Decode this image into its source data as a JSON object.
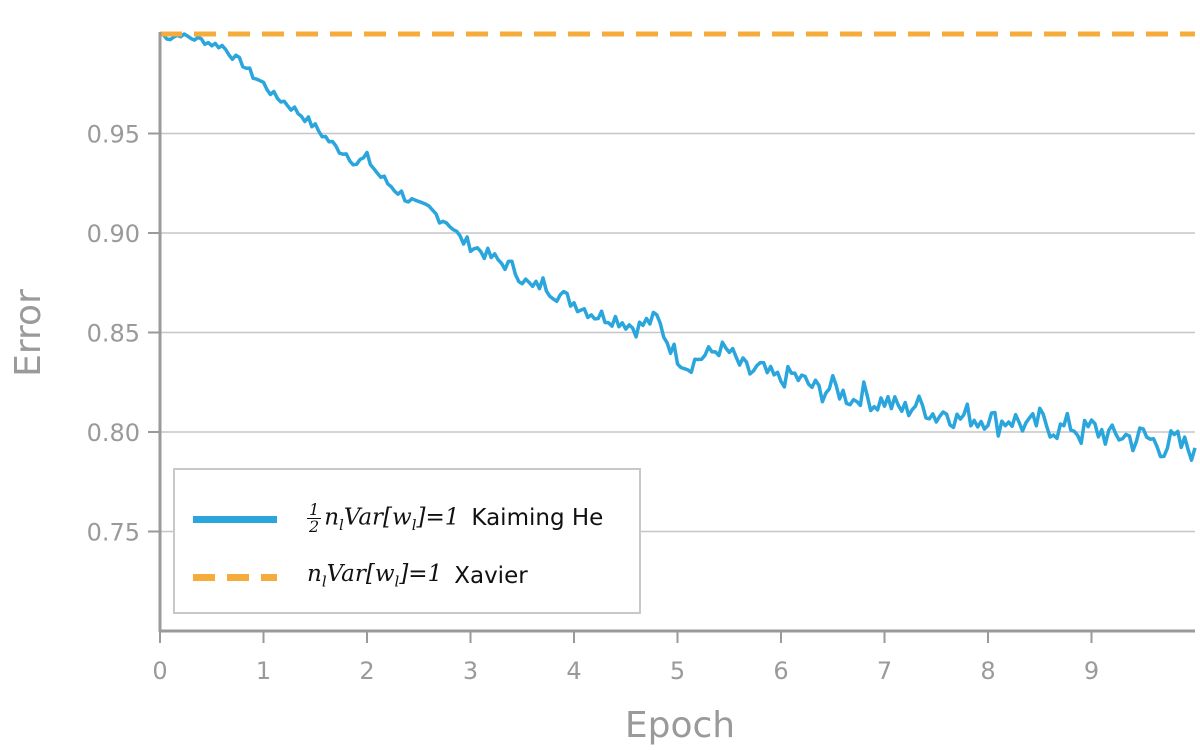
{
  "chart_data": {
    "type": "line",
    "title": "",
    "xlabel": "Epoch",
    "ylabel": "Error",
    "xlim": [
      0,
      10
    ],
    "ylim": [
      0.7,
      1.0
    ],
    "x_ticks": [
      "0",
      "1",
      "2",
      "3",
      "4",
      "5",
      "6",
      "7",
      "8",
      "9"
    ],
    "y_ticks": [
      "0.75",
      "0.80",
      "0.85",
      "0.90",
      "0.95"
    ],
    "grid": "horizontal",
    "legend_placement": "lower-left",
    "series": [
      {
        "name": "Kaiming He",
        "legend_formula": {
          "frac_num": "1",
          "frac_den": "2",
          "pre": "n",
          "sub1": "l",
          "mid": "Var[w",
          "sub2": "l",
          "post": "]=1"
        },
        "color": "#2aa6dd",
        "style": "solid",
        "points": [
          [
            0.0,
            1.0
          ],
          [
            0.1,
            0.998
          ],
          [
            0.2,
            1.0
          ],
          [
            0.3,
            0.998
          ],
          [
            0.4,
            0.997
          ],
          [
            0.5,
            0.995
          ],
          [
            0.6,
            0.994
          ],
          [
            0.7,
            0.989
          ],
          [
            0.8,
            0.985
          ],
          [
            0.9,
            0.979
          ],
          [
            1.0,
            0.975
          ],
          [
            1.1,
            0.969
          ],
          [
            1.2,
            0.966
          ],
          [
            1.3,
            0.962
          ],
          [
            1.4,
            0.958
          ],
          [
            1.5,
            0.953
          ],
          [
            1.6,
            0.948
          ],
          [
            1.7,
            0.943
          ],
          [
            1.8,
            0.94
          ],
          [
            1.9,
            0.935
          ],
          [
            2.0,
            0.938
          ],
          [
            2.1,
            0.93
          ],
          [
            2.2,
            0.925
          ],
          [
            2.3,
            0.921
          ],
          [
            2.4,
            0.917
          ],
          [
            2.5,
            0.913
          ],
          [
            2.6,
            0.912
          ],
          [
            2.7,
            0.908
          ],
          [
            2.8,
            0.905
          ],
          [
            2.9,
            0.897
          ],
          [
            3.0,
            0.894
          ],
          [
            3.1,
            0.891
          ],
          [
            3.2,
            0.888
          ],
          [
            3.3,
            0.885
          ],
          [
            3.4,
            0.883
          ],
          [
            3.5,
            0.877
          ],
          [
            3.6,
            0.872
          ],
          [
            3.7,
            0.875
          ],
          [
            3.8,
            0.87
          ],
          [
            3.9,
            0.868
          ],
          [
            4.0,
            0.865
          ],
          [
            4.1,
            0.862
          ],
          [
            4.2,
            0.859
          ],
          [
            4.3,
            0.858
          ],
          [
            4.4,
            0.857
          ],
          [
            4.5,
            0.855
          ],
          [
            4.6,
            0.852
          ],
          [
            4.7,
            0.855
          ],
          [
            4.8,
            0.857
          ],
          [
            4.9,
            0.846
          ],
          [
            5.0,
            0.838
          ],
          [
            5.1,
            0.833
          ],
          [
            5.2,
            0.837
          ],
          [
            5.3,
            0.839
          ],
          [
            5.4,
            0.842
          ],
          [
            5.5,
            0.84
          ],
          [
            5.6,
            0.834
          ],
          [
            5.7,
            0.83
          ],
          [
            5.8,
            0.832
          ],
          [
            5.9,
            0.828
          ],
          [
            6.0,
            0.826
          ],
          [
            6.1,
            0.829
          ],
          [
            6.2,
            0.826
          ],
          [
            6.3,
            0.823
          ],
          [
            6.4,
            0.82
          ],
          [
            6.5,
            0.823
          ],
          [
            6.6,
            0.819
          ],
          [
            6.7,
            0.816
          ],
          [
            6.8,
            0.82
          ],
          [
            6.9,
            0.814
          ],
          [
            7.0,
            0.816
          ],
          [
            7.1,
            0.813
          ],
          [
            7.2,
            0.811
          ],
          [
            7.3,
            0.814
          ],
          [
            7.4,
            0.812
          ],
          [
            7.5,
            0.808
          ],
          [
            7.6,
            0.811
          ],
          [
            7.7,
            0.806
          ],
          [
            7.8,
            0.809
          ],
          [
            7.9,
            0.806
          ],
          [
            8.0,
            0.808
          ],
          [
            8.1,
            0.804
          ],
          [
            8.2,
            0.807
          ],
          [
            8.3,
            0.805
          ],
          [
            8.4,
            0.802
          ],
          [
            8.5,
            0.806
          ],
          [
            8.6,
            0.803
          ],
          [
            8.7,
            0.801
          ],
          [
            8.8,
            0.804
          ],
          [
            8.9,
            0.799
          ],
          [
            9.0,
            0.802
          ],
          [
            9.1,
            0.8
          ],
          [
            9.2,
            0.797
          ],
          [
            9.3,
            0.799
          ],
          [
            9.4,
            0.796
          ],
          [
            9.5,
            0.798
          ],
          [
            9.6,
            0.795
          ],
          [
            9.7,
            0.793
          ],
          [
            9.8,
            0.795
          ],
          [
            9.9,
            0.792
          ],
          [
            10.0,
            0.792
          ]
        ]
      },
      {
        "name": "Xavier",
        "legend_formula": {
          "pre": "n",
          "sub1": "l",
          "mid": "Var[w",
          "sub2": "l",
          "post": "]=1"
        },
        "color": "#f5ac3b",
        "style": "dashed",
        "points": [
          [
            0.0,
            1.0
          ],
          [
            10.0,
            1.0
          ]
        ]
      }
    ]
  }
}
